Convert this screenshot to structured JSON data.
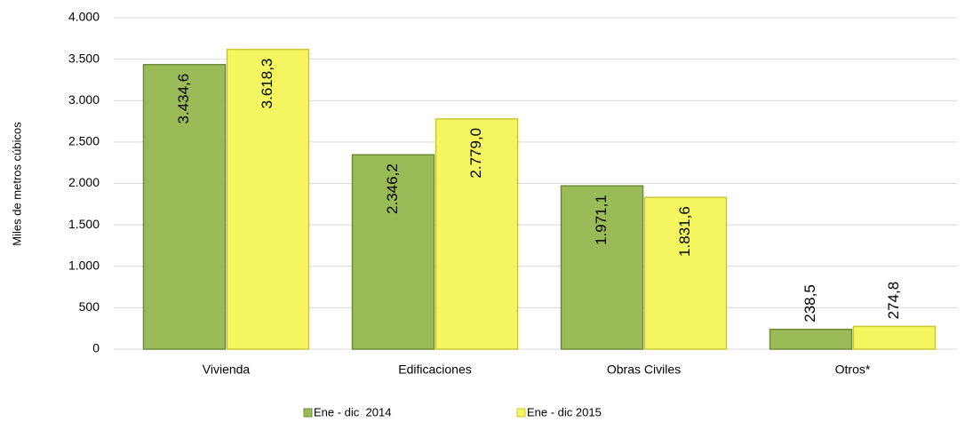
{
  "chart_data": {
    "type": "bar",
    "y_label": "Miles de metros cúbicos",
    "categories": [
      "Vivienda",
      "Edificaciones",
      "Obras Civiles",
      "Otros*"
    ],
    "series": [
      {
        "name": "Ene - dic  2014",
        "color": "#9bbb59",
        "values": [
          3434.6,
          2346.2,
          1971.1,
          238.5
        ],
        "value_labels": [
          "3.434,6",
          "2.346,2",
          "1.971,1",
          "238,5"
        ]
      },
      {
        "name": "Ene - dic 2015",
        "color": "#f5f55f",
        "values": [
          3618.3,
          2779.0,
          1831.6,
          274.8
        ],
        "value_labels": [
          "3.618,3",
          "2.779,0",
          "1.831,6",
          "274,8"
        ]
      }
    ],
    "ylim": [
      0,
      4000
    ],
    "yticks": [
      0,
      500,
      {
        "value": 1000,
        "label": "1.000"
      },
      {
        "value": 1500,
        "label": "1.500"
      },
      {
        "value": 2000,
        "label": "2.000"
      },
      {
        "value": 2500,
        "label": "2.500"
      },
      {
        "value": 3000,
        "label": "3.000"
      },
      {
        "value": 3500,
        "label": "3.500"
      },
      {
        "value": 4000,
        "label": "4.000"
      }
    ],
    "grid": true
  }
}
